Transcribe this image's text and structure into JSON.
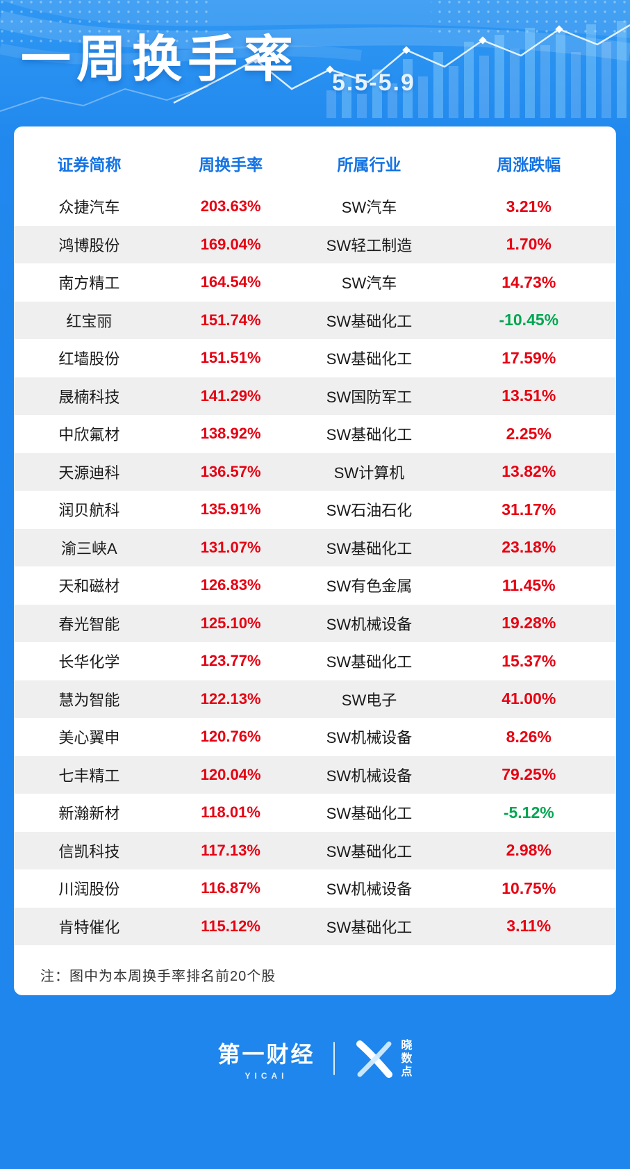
{
  "header": {
    "title": "一周换手率",
    "date_range": "5.5-5.9"
  },
  "table": {
    "columns": [
      "证券简称",
      "周换手率",
      "所属行业",
      "周涨跌幅"
    ],
    "rows": [
      {
        "name": "众捷汽车",
        "turnover": "203.63%",
        "industry": "SW汽车",
        "change": "3.21%"
      },
      {
        "name": "鸿博股份",
        "turnover": "169.04%",
        "industry": "SW轻工制造",
        "change": "1.70%"
      },
      {
        "name": "南方精工",
        "turnover": "164.54%",
        "industry": "SW汽车",
        "change": "14.73%"
      },
      {
        "name": "红宝丽",
        "turnover": "151.74%",
        "industry": "SW基础化工",
        "change": "-10.45%"
      },
      {
        "name": "红墙股份",
        "turnover": "151.51%",
        "industry": "SW基础化工",
        "change": "17.59%"
      },
      {
        "name": "晟楠科技",
        "turnover": "141.29%",
        "industry": "SW国防军工",
        "change": "13.51%"
      },
      {
        "name": "中欣氟材",
        "turnover": "138.92%",
        "industry": "SW基础化工",
        "change": "2.25%"
      },
      {
        "name": "天源迪科",
        "turnover": "136.57%",
        "industry": "SW计算机",
        "change": "13.82%"
      },
      {
        "name": "润贝航科",
        "turnover": "135.91%",
        "industry": "SW石油石化",
        "change": "31.17%"
      },
      {
        "name": "渝三峡A",
        "turnover": "131.07%",
        "industry": "SW基础化工",
        "change": "23.18%"
      },
      {
        "name": "天和磁材",
        "turnover": "126.83%",
        "industry": "SW有色金属",
        "change": "11.45%"
      },
      {
        "name": "春光智能",
        "turnover": "125.10%",
        "industry": "SW机械设备",
        "change": "19.28%"
      },
      {
        "name": "长华化学",
        "turnover": "123.77%",
        "industry": "SW基础化工",
        "change": "15.37%"
      },
      {
        "name": "慧为智能",
        "turnover": "122.13%",
        "industry": "SW电子",
        "change": "41.00%"
      },
      {
        "name": "美心翼申",
        "turnover": "120.76%",
        "industry": "SW机械设备",
        "change": "8.26%"
      },
      {
        "name": "七丰精工",
        "turnover": "120.04%",
        "industry": "SW机械设备",
        "change": "79.25%"
      },
      {
        "name": "新瀚新材",
        "turnover": "118.01%",
        "industry": "SW基础化工",
        "change": "-5.12%"
      },
      {
        "name": "信凯科技",
        "turnover": "117.13%",
        "industry": "SW基础化工",
        "change": "2.98%"
      },
      {
        "name": "川润股份",
        "turnover": "116.87%",
        "industry": "SW机械设备",
        "change": "10.75%"
      },
      {
        "name": "肯特催化",
        "turnover": "115.12%",
        "industry": "SW基础化工",
        "change": "3.11%"
      }
    ]
  },
  "note": "注：图中为本周换手率排名前20个股",
  "footer": {
    "brand_left": "第一财经",
    "brand_left_sub": "YICAI",
    "brand_right_chars": [
      "晓",
      "数",
      "点"
    ]
  },
  "colors": {
    "background_blue": "#1e86ec",
    "header_text_blue": "#1373e4",
    "up_red": "#e60012",
    "down_green": "#00a651",
    "row_alt_gray": "#efefef"
  },
  "chart_data": {
    "type": "table",
    "title": "一周换手率 5.5-5.9",
    "columns": [
      "证券简称",
      "周换手率",
      "所属行业",
      "周涨跌幅"
    ],
    "turnover_values": [
      203.63,
      169.04,
      164.54,
      151.74,
      151.51,
      141.29,
      138.92,
      136.57,
      135.91,
      131.07,
      126.83,
      125.1,
      123.77,
      122.13,
      120.76,
      120.04,
      118.01,
      117.13,
      116.87,
      115.12
    ],
    "change_values": [
      3.21,
      1.7,
      14.73,
      -10.45,
      17.59,
      13.51,
      2.25,
      13.82,
      31.17,
      23.18,
      11.45,
      19.28,
      15.37,
      41.0,
      8.26,
      79.25,
      -5.12,
      2.98,
      10.75,
      3.11
    ]
  }
}
